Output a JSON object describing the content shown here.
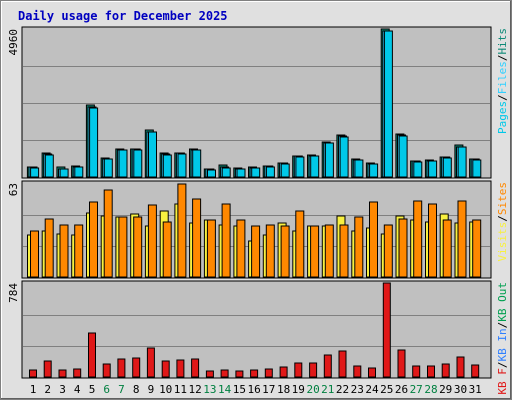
{
  "title": "Daily usage for December 2025",
  "colors": {
    "background": "#e0e0e0",
    "plot_bg": "#c0c0c0",
    "title_text": "#0000c0",
    "hits": "#0e8a78",
    "files": "#30d0ff",
    "pages": "#00c8e8",
    "visits": "#f8f040",
    "sites": "#ff8800",
    "kb_f": "#e01818",
    "kb_in": "#3080ff",
    "kb_out": "#00a050",
    "weekend_label": "#008040",
    "weekday_label": "#000000"
  },
  "chart_data": [
    {
      "type": "bar",
      "panel": "hits_files_pages",
      "y_max_label": "4960",
      "ylim": [
        0,
        4960
      ],
      "legend_right": [
        "Pages",
        "/",
        "Files",
        "/",
        "Hits"
      ],
      "categories": [
        "1",
        "2",
        "3",
        "4",
        "5",
        "6",
        "7",
        "8",
        "9",
        "10",
        "11",
        "12",
        "13",
        "14",
        "15",
        "16",
        "17",
        "18",
        "19",
        "20",
        "21",
        "22",
        "23",
        "24",
        "25",
        "26",
        "27",
        "28",
        "29",
        "30",
        "31"
      ],
      "weekend_days": [
        "6",
        "7",
        "13",
        "14",
        "20",
        "21",
        "27",
        "28"
      ],
      "series": [
        {
          "name": "Hits",
          "values": [
            330,
            790,
            330,
            360,
            2400,
            630,
            930,
            950,
            1580,
            790,
            820,
            940,
            270,
            400,
            290,
            320,
            380,
            470,
            710,
            730,
            1170,
            1410,
            600,
            470,
            4960,
            1440,
            550,
            570,
            680,
            1060,
            610
          ]
        },
        {
          "name": "Files",
          "values": [
            320,
            770,
            280,
            350,
            2330,
            610,
            910,
            930,
            1520,
            760,
            800,
            920,
            260,
            330,
            270,
            310,
            360,
            460,
            690,
            710,
            1150,
            1370,
            580,
            440,
            4900,
            1410,
            530,
            550,
            660,
            1020,
            590
          ]
        },
        {
          "name": "Pages",
          "values": [
            300,
            750,
            260,
            330,
            2300,
            600,
            900,
            910,
            1500,
            740,
            780,
            900,
            250,
            300,
            260,
            300,
            340,
            440,
            670,
            690,
            1130,
            1350,
            560,
            430,
            4880,
            1390,
            510,
            530,
            640,
            1000,
            570
          ]
        }
      ]
    },
    {
      "type": "bar",
      "panel": "visits_sites",
      "y_max_label": "63",
      "ylim": [
        0,
        63
      ],
      "legend_right": [
        "Visits",
        "/",
        "Sites"
      ],
      "categories": [
        "1",
        "2",
        "3",
        "4",
        "5",
        "6",
        "7",
        "8",
        "9",
        "10",
        "11",
        "12",
        "13",
        "14",
        "15",
        "16",
        "17",
        "18",
        "19",
        "20",
        "21",
        "22",
        "23",
        "24",
        "25",
        "26",
        "27",
        "28",
        "29",
        "30",
        "31"
      ],
      "series": [
        {
          "name": "Visits",
          "values": [
            28,
            31,
            29,
            28,
            43,
            41,
            40,
            42,
            34,
            44,
            49,
            36,
            38,
            35,
            34,
            24,
            28,
            36,
            31,
            34,
            34,
            41,
            31,
            33,
            29,
            41,
            38,
            37,
            42,
            36,
            37
          ]
        },
        {
          "name": "Sites",
          "values": [
            31,
            39,
            35,
            35,
            50,
            58,
            40,
            40,
            48,
            37,
            62,
            52,
            38,
            49,
            38,
            34,
            35,
            34,
            44,
            34,
            35,
            35,
            40,
            50,
            35,
            39,
            51,
            49,
            38,
            51,
            38
          ]
        }
      ]
    },
    {
      "type": "bar",
      "panel": "kbytes",
      "y_max_label": "784",
      "ylim": [
        0,
        784
      ],
      "legend_right": [
        "KB F",
        "/",
        "KB In",
        "/",
        "KB Out"
      ],
      "categories": [
        "1",
        "2",
        "3",
        "4",
        "5",
        "6",
        "7",
        "8",
        "9",
        "10",
        "11",
        "12",
        "13",
        "14",
        "15",
        "16",
        "17",
        "18",
        "19",
        "20",
        "21",
        "22",
        "23",
        "24",
        "25",
        "26",
        "27",
        "28",
        "29",
        "30",
        "31"
      ],
      "series": [
        {
          "name": "KB F",
          "values": [
            62,
            133,
            57,
            66,
            368,
            106,
            153,
            156,
            246,
            131,
            138,
            150,
            48,
            60,
            48,
            55,
            64,
            81,
            115,
            118,
            183,
            219,
            94,
            75,
            784,
            225,
            90,
            92,
            110,
            170,
            100
          ]
        }
      ]
    }
  ]
}
